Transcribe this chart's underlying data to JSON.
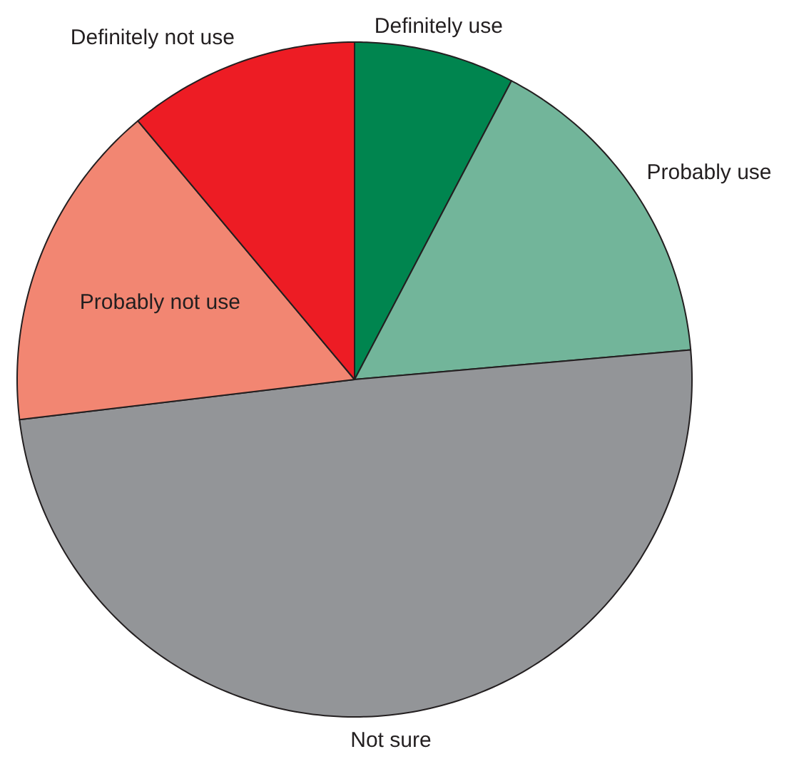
{
  "chart_data": {
    "type": "pie",
    "categories": [
      "Definitely use",
      "Probably use",
      "Not sure",
      "Probably not use",
      "Definitely not use"
    ],
    "values": [
      7.7,
      15.9,
      49.5,
      15.8,
      11.1
    ],
    "colors": [
      "#00854f",
      "#72b59a",
      "#939598",
      "#f28672",
      "#ed1c24"
    ]
  }
}
